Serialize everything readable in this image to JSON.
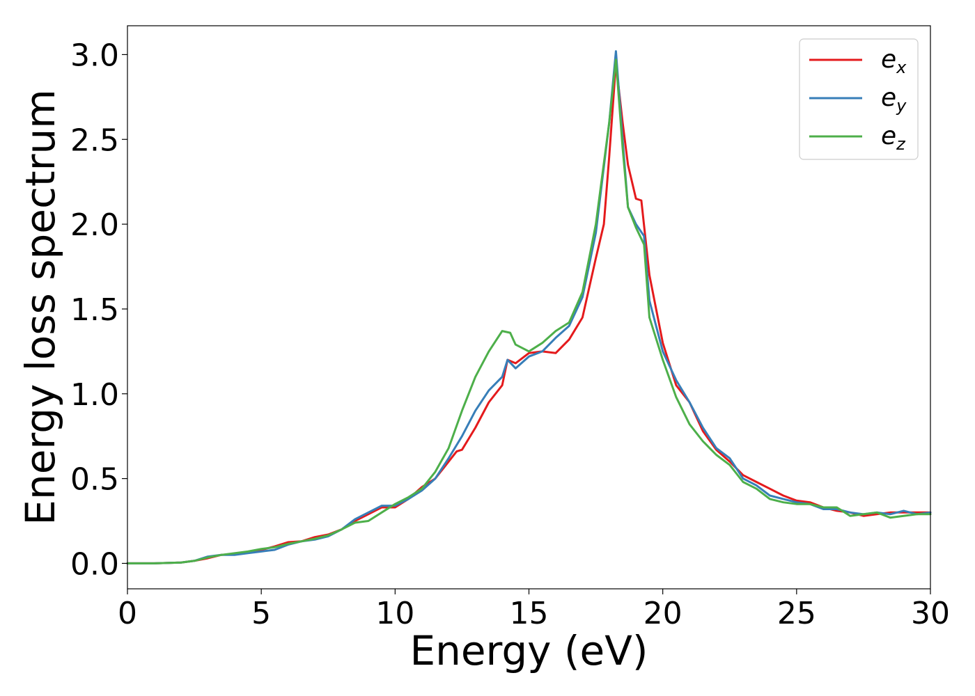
{
  "chart_data": {
    "type": "line",
    "title": "",
    "xlabel": "Energy (eV)",
    "ylabel": "Energy loss spectrum",
    "xlim": [
      0,
      30
    ],
    "ylim": [
      -0.15,
      3.17
    ],
    "xticks": [
      0,
      5,
      10,
      15,
      20,
      25,
      30
    ],
    "xtick_labels": [
      "0",
      "5",
      "10",
      "15",
      "20",
      "25",
      "30"
    ],
    "yticks": [
      0.0,
      0.5,
      1.0,
      1.5,
      2.0,
      2.5,
      3.0
    ],
    "ytick_labels": [
      "0.0",
      "0.5",
      "1.0",
      "1.5",
      "2.0",
      "2.5",
      "3.0"
    ],
    "grid": false,
    "legend_position": "top-right",
    "series": [
      {
        "name": "e_x",
        "legend_base": "e",
        "legend_sub": "x",
        "color": "#e41a1c",
        "points": [
          [
            0,
            0
          ],
          [
            1,
            0
          ],
          [
            2,
            0.005
          ],
          [
            2.5,
            0.015
          ],
          [
            3,
            0.03
          ],
          [
            3.5,
            0.05
          ],
          [
            4,
            0.055
          ],
          [
            4.5,
            0.065
          ],
          [
            5,
            0.08
          ],
          [
            5.5,
            0.1
          ],
          [
            6,
            0.125
          ],
          [
            6.5,
            0.13
          ],
          [
            7,
            0.155
          ],
          [
            7.5,
            0.17
          ],
          [
            8,
            0.2
          ],
          [
            8.5,
            0.25
          ],
          [
            9,
            0.29
          ],
          [
            9.5,
            0.33
          ],
          [
            10,
            0.33
          ],
          [
            10.5,
            0.38
          ],
          [
            11,
            0.45
          ],
          [
            11.5,
            0.5
          ],
          [
            12,
            0.6
          ],
          [
            12.3,
            0.66
          ],
          [
            12.5,
            0.67
          ],
          [
            13,
            0.8
          ],
          [
            13.5,
            0.95
          ],
          [
            14,
            1.05
          ],
          [
            14.2,
            1.2
          ],
          [
            14.5,
            1.18
          ],
          [
            15,
            1.24
          ],
          [
            15.5,
            1.25
          ],
          [
            16,
            1.24
          ],
          [
            16.5,
            1.32
          ],
          [
            17,
            1.45
          ],
          [
            17.5,
            1.8
          ],
          [
            17.8,
            2.0
          ],
          [
            18,
            2.4
          ],
          [
            18.25,
            2.95
          ],
          [
            18.5,
            2.6
          ],
          [
            18.7,
            2.35
          ],
          [
            19,
            2.15
          ],
          [
            19.2,
            2.14
          ],
          [
            19.5,
            1.7
          ],
          [
            20,
            1.3
          ],
          [
            20.5,
            1.05
          ],
          [
            21,
            0.95
          ],
          [
            21.5,
            0.78
          ],
          [
            22,
            0.67
          ],
          [
            22.5,
            0.6
          ],
          [
            23,
            0.52
          ],
          [
            23.5,
            0.48
          ],
          [
            24,
            0.44
          ],
          [
            24.5,
            0.4
          ],
          [
            25,
            0.37
          ],
          [
            25.5,
            0.36
          ],
          [
            26,
            0.33
          ],
          [
            26.5,
            0.31
          ],
          [
            27,
            0.3
          ],
          [
            27.5,
            0.28
          ],
          [
            28,
            0.29
          ],
          [
            28.5,
            0.3
          ],
          [
            29,
            0.3
          ],
          [
            29.5,
            0.3
          ],
          [
            30,
            0.3
          ]
        ]
      },
      {
        "name": "e_y",
        "legend_base": "e",
        "legend_sub": "y",
        "color": "#377eb8",
        "points": [
          [
            0,
            0
          ],
          [
            1,
            0
          ],
          [
            2,
            0.005
          ],
          [
            2.5,
            0.015
          ],
          [
            3,
            0.04
          ],
          [
            3.5,
            0.05
          ],
          [
            4,
            0.05
          ],
          [
            4.5,
            0.06
          ],
          [
            5,
            0.07
          ],
          [
            5.5,
            0.08
          ],
          [
            6,
            0.11
          ],
          [
            6.5,
            0.13
          ],
          [
            7,
            0.14
          ],
          [
            7.5,
            0.16
          ],
          [
            8,
            0.2
          ],
          [
            8.5,
            0.26
          ],
          [
            9,
            0.3
          ],
          [
            9.5,
            0.34
          ],
          [
            10,
            0.34
          ],
          [
            10.5,
            0.38
          ],
          [
            11,
            0.43
          ],
          [
            11.5,
            0.5
          ],
          [
            12,
            0.62
          ],
          [
            12.5,
            0.75
          ],
          [
            13,
            0.9
          ],
          [
            13.5,
            1.02
          ],
          [
            14,
            1.1
          ],
          [
            14.2,
            1.2
          ],
          [
            14.5,
            1.15
          ],
          [
            15,
            1.22
          ],
          [
            15.5,
            1.25
          ],
          [
            16,
            1.33
          ],
          [
            16.5,
            1.4
          ],
          [
            17,
            1.57
          ],
          [
            17.5,
            1.95
          ],
          [
            18,
            2.6
          ],
          [
            18.25,
            3.02
          ],
          [
            18.5,
            2.5
          ],
          [
            18.7,
            2.1
          ],
          [
            19,
            2.0
          ],
          [
            19.3,
            1.93
          ],
          [
            19.5,
            1.55
          ],
          [
            20,
            1.25
          ],
          [
            20.5,
            1.08
          ],
          [
            21,
            0.95
          ],
          [
            21.5,
            0.8
          ],
          [
            22,
            0.68
          ],
          [
            22.5,
            0.62
          ],
          [
            23,
            0.5
          ],
          [
            23.5,
            0.46
          ],
          [
            24,
            0.4
          ],
          [
            24.5,
            0.38
          ],
          [
            25,
            0.36
          ],
          [
            25.5,
            0.35
          ],
          [
            26,
            0.32
          ],
          [
            26.5,
            0.32
          ],
          [
            27,
            0.3
          ],
          [
            27.5,
            0.29
          ],
          [
            28,
            0.3
          ],
          [
            28.5,
            0.29
          ],
          [
            29,
            0.31
          ],
          [
            29.5,
            0.29
          ],
          [
            30,
            0.3
          ]
        ]
      },
      {
        "name": "e_z",
        "legend_base": "e",
        "legend_sub": "z",
        "color": "#4daf4a",
        "points": [
          [
            0,
            0
          ],
          [
            1,
            0
          ],
          [
            2,
            0.005
          ],
          [
            2.5,
            0.015
          ],
          [
            3,
            0.035
          ],
          [
            3.5,
            0.05
          ],
          [
            4,
            0.06
          ],
          [
            4.5,
            0.07
          ],
          [
            5,
            0.085
          ],
          [
            5.5,
            0.095
          ],
          [
            6,
            0.115
          ],
          [
            6.5,
            0.13
          ],
          [
            7,
            0.145
          ],
          [
            7.5,
            0.165
          ],
          [
            8,
            0.2
          ],
          [
            8.5,
            0.24
          ],
          [
            9,
            0.25
          ],
          [
            9.5,
            0.3
          ],
          [
            10,
            0.35
          ],
          [
            10.5,
            0.39
          ],
          [
            11,
            0.44
          ],
          [
            11.5,
            0.54
          ],
          [
            12,
            0.68
          ],
          [
            12.5,
            0.9
          ],
          [
            13,
            1.1
          ],
          [
            13.5,
            1.25
          ],
          [
            14,
            1.37
          ],
          [
            14.3,
            1.36
          ],
          [
            14.5,
            1.29
          ],
          [
            15,
            1.25
          ],
          [
            15.5,
            1.3
          ],
          [
            16,
            1.37
          ],
          [
            16.5,
            1.42
          ],
          [
            17,
            1.6
          ],
          [
            17.5,
            2.0
          ],
          [
            18,
            2.6
          ],
          [
            18.25,
            2.97
          ],
          [
            18.5,
            2.45
          ],
          [
            18.7,
            2.1
          ],
          [
            19,
            1.98
          ],
          [
            19.3,
            1.88
          ],
          [
            19.5,
            1.45
          ],
          [
            20,
            1.2
          ],
          [
            20.5,
            0.98
          ],
          [
            21,
            0.82
          ],
          [
            21.5,
            0.72
          ],
          [
            22,
            0.64
          ],
          [
            22.5,
            0.58
          ],
          [
            23,
            0.48
          ],
          [
            23.5,
            0.44
          ],
          [
            24,
            0.38
          ],
          [
            24.5,
            0.36
          ],
          [
            25,
            0.35
          ],
          [
            25.5,
            0.35
          ],
          [
            26,
            0.33
          ],
          [
            26.5,
            0.33
          ],
          [
            27,
            0.28
          ],
          [
            27.5,
            0.29
          ],
          [
            28,
            0.3
          ],
          [
            28.5,
            0.27
          ],
          [
            29,
            0.28
          ],
          [
            29.5,
            0.29
          ],
          [
            30,
            0.29
          ]
        ]
      }
    ]
  }
}
